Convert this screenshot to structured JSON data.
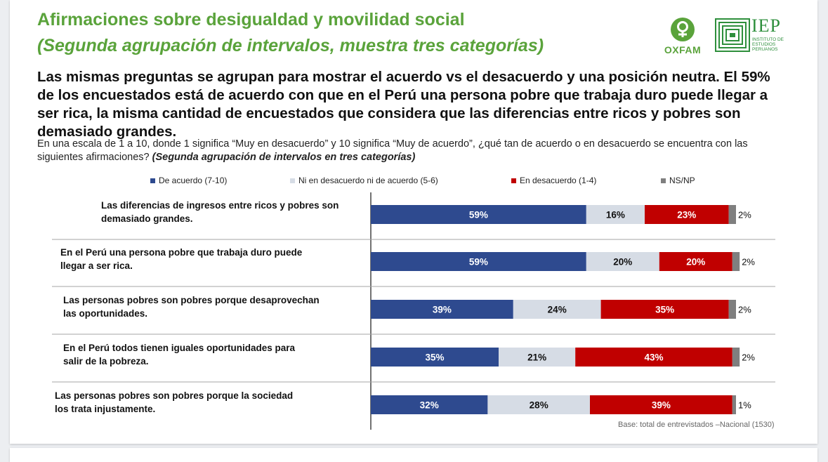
{
  "header": {
    "title": "Afirmaciones sobre desigualdad y movilidad social",
    "subtitle": "(Segunda agrupación de intervalos, muestra tres categorías)",
    "headline": "Las mismas preguntas se agrupan para mostrar el acuerdo vs el desacuerdo y una posición neutra. El 59% de los encuestados está de acuerdo con que en el Perú una persona pobre que trabaja duro puede llegar a ser rica, la misma cantidad de encuestados que considera que las diferencias entre ricos y pobres son demasiado grandes.",
    "question_text": "En una escala de 1 a 10, donde 1 significa “Muy en desacuerdo” y 10 significa “Muy de acuerdo”, ¿qué tan de acuerdo o en desacuerdo se encuentra con las siguientes afirmaciones?",
    "question_emph": "(Segunda agrupación de intervalos en tres categorías)"
  },
  "logos": {
    "oxfam": "OXFAM",
    "iep": "IEP",
    "iep_line1": "INSTITUTO DE",
    "iep_line2": "ESTUDIOS",
    "iep_line3": "PERUANOS"
  },
  "footnote": "Base: total de entrevistados –Nacional (1530)",
  "chart_data": {
    "type": "bar",
    "orientation": "horizontal",
    "stacked": true,
    "legend_position": "top",
    "categories": [
      "Las diferencias de ingresos entre ricos y pobres son demasiado grandes.",
      "En el Perú una persona pobre que trabaja duro puede llegar a ser rica.",
      "Las personas pobres son pobres porque desaprovechan las oportunidades.",
      "En el Perú todos tienen iguales oportunidades para salir de la pobreza.",
      "Las personas pobres son pobres porque la sociedad los trata injustamente."
    ],
    "series": [
      {
        "name": "De acuerdo (7-10)",
        "color": "#2e4a8f",
        "values": [
          59,
          59,
          39,
          35,
          32
        ],
        "labels": [
          "59%",
          "59%",
          "39%",
          "35%",
          "32%"
        ]
      },
      {
        "name": "Ni en desacuerdo ni de acuerdo (5-6)",
        "color": "#d6dce5",
        "values": [
          16,
          20,
          24,
          21,
          28
        ],
        "labels": [
          "16%",
          "20%",
          "24%",
          "21%",
          "28%"
        ]
      },
      {
        "name": "En desacuerdo (1-4)",
        "color": "#c00000",
        "values": [
          23,
          20,
          35,
          43,
          39
        ],
        "labels": [
          "23%",
          "20%",
          "35%",
          "43%",
          "39%"
        ]
      },
      {
        "name": "NS/NP",
        "color": "#7f7f7f",
        "values": [
          2,
          2,
          2,
          2,
          1
        ],
        "labels": [
          "2%",
          "2%",
          "2%",
          "2%",
          "1%"
        ]
      }
    ],
    "xlim": [
      0,
      100
    ],
    "colors": {
      "title": "#5aa33b",
      "separator": "#a6a6a6"
    }
  }
}
